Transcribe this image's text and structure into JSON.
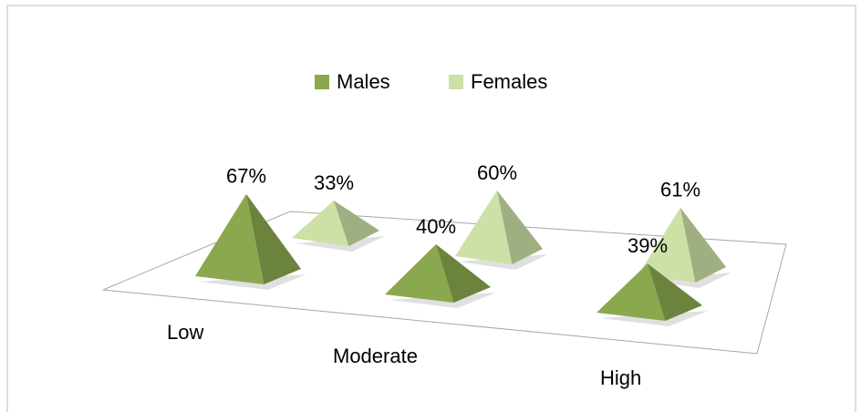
{
  "chart_data": {
    "type": "pyramid",
    "categories": [
      "Low",
      "Moderate",
      "High"
    ],
    "series": [
      {
        "name": "Males",
        "color": "#8aa84e",
        "values": [
          67,
          40,
          39
        ],
        "value_labels": [
          "67%",
          "40%",
          "39%"
        ]
      },
      {
        "name": "Females",
        "color": "#cde0a6",
        "values": [
          33,
          60,
          61
        ],
        "value_labels": [
          "33%",
          "60%",
          "61%"
        ]
      }
    ],
    "legend": "top"
  }
}
